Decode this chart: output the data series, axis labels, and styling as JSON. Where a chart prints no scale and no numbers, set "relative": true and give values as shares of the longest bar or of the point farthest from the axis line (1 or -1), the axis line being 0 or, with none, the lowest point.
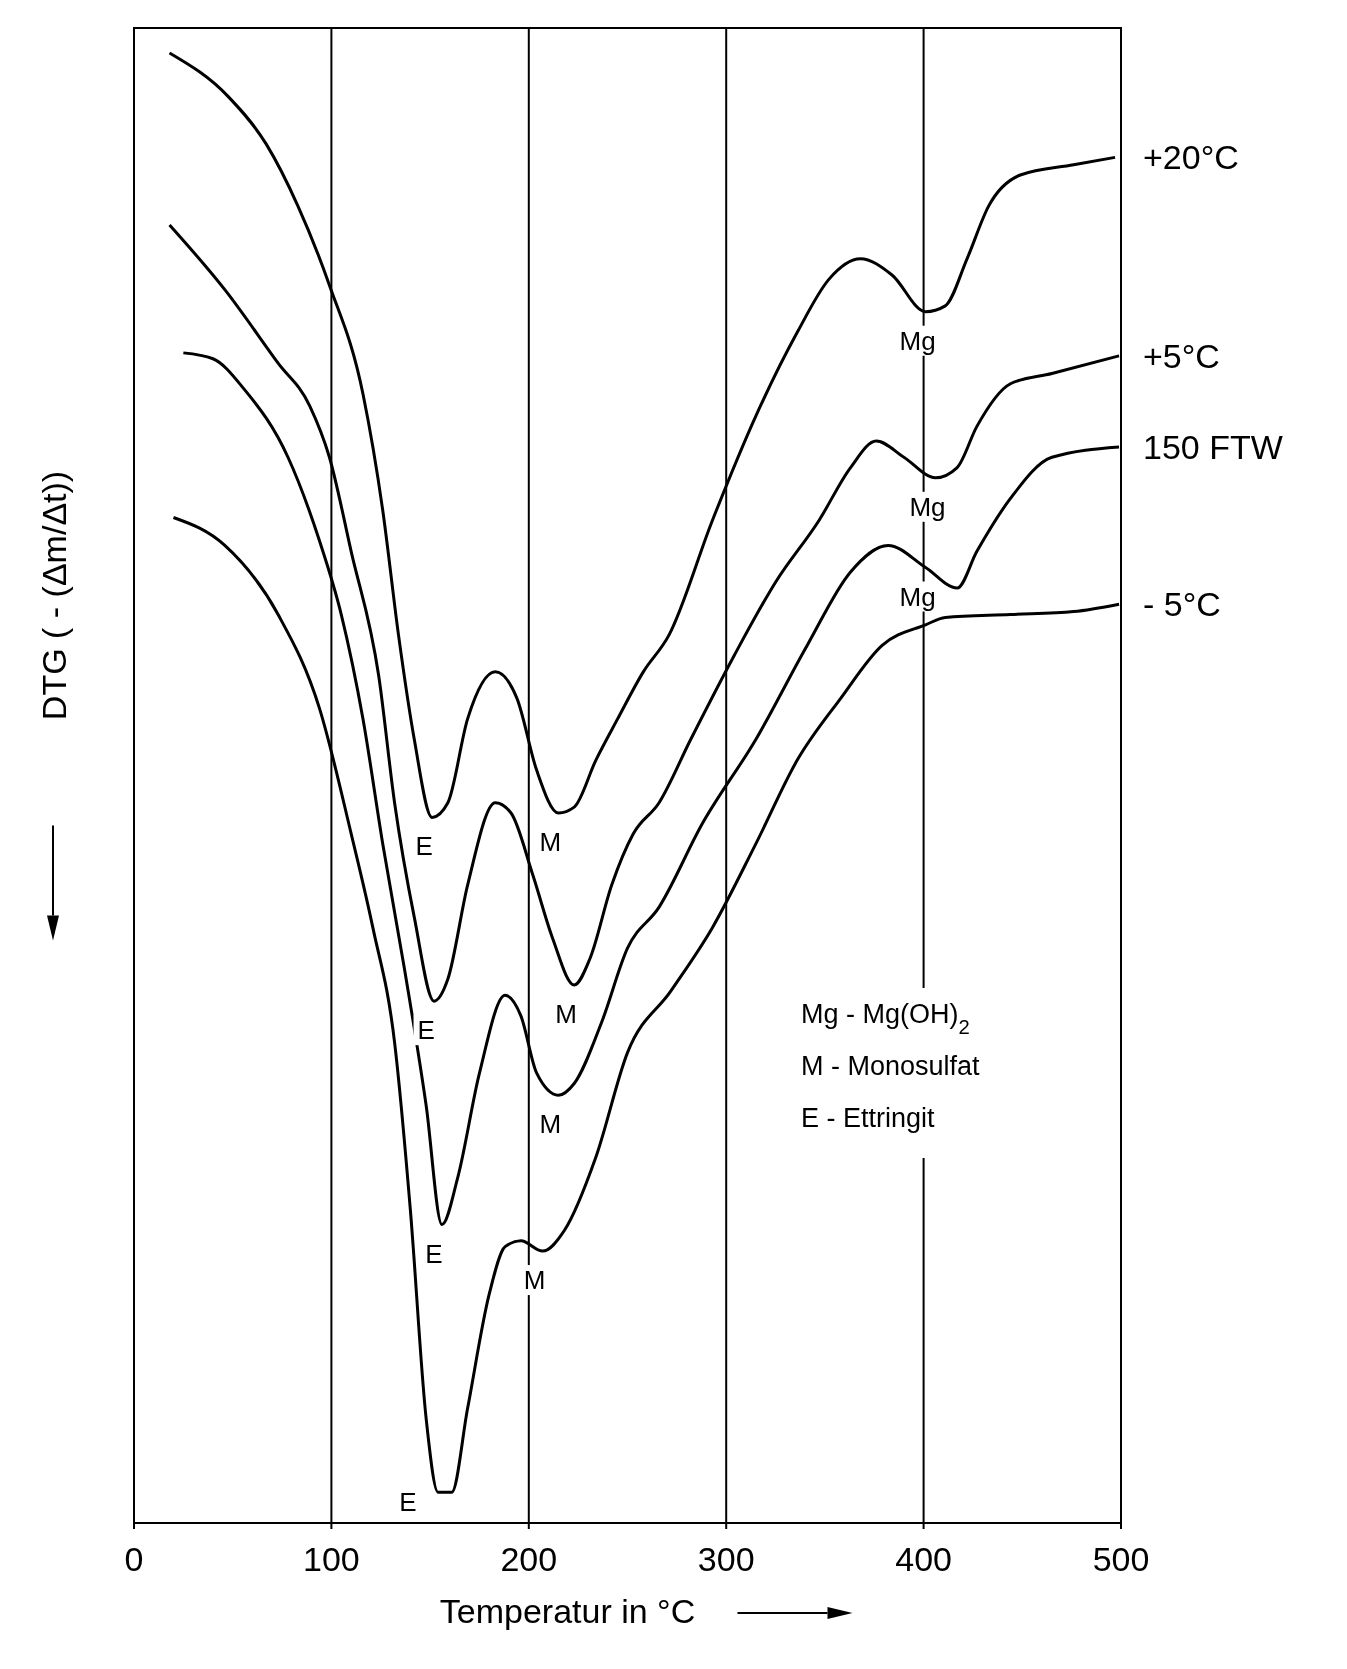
{
  "chart_data": {
    "type": "line",
    "relative": true,
    "xlabel": "Temperatur in °C",
    "ylabel": "DTG ( - (Δm/Δt))",
    "xlim": [
      0,
      500
    ],
    "xticks": [
      0,
      100,
      200,
      300,
      400,
      500
    ],
    "grid": "x",
    "legend": false,
    "marker": "none",
    "line_style": "solid",
    "series": [
      {
        "name": "+20°C",
        "color": "#000000",
        "x": [
          18,
          48,
          67,
          83,
          99,
          116,
          126,
          134,
          142,
          151,
          159,
          169,
          183,
          194,
          204,
          215,
          223,
          234,
          245,
          258,
          271,
          293,
          315,
          336,
          352,
          368,
          384,
          401,
          411,
          422,
          433,
          449,
          476,
          497
        ],
        "values": [
          1.0,
          0.97,
          0.938,
          0.896,
          0.842,
          0.768,
          0.689,
          0.604,
          0.533,
          0.48,
          0.49,
          0.547,
          0.579,
          0.561,
          0.512,
          0.483,
          0.487,
          0.519,
          0.547,
          0.579,
          0.604,
          0.682,
          0.753,
          0.81,
          0.846,
          0.86,
          0.849,
          0.824,
          0.828,
          0.86,
          0.896,
          0.917,
          0.924,
          0.929
        ]
      },
      {
        "name": "+5°C",
        "color": "#000000",
        "x": [
          18,
          46,
          73,
          89,
          99,
          110,
          124,
          132,
          142,
          152,
          159,
          169,
          183,
          191,
          202,
          212,
          223,
          231,
          242,
          253,
          266,
          282,
          304,
          325,
          347,
          363,
          376,
          390,
          406,
          417,
          427,
          444,
          465,
          499
        ],
        "values": [
          0.883,
          0.839,
          0.789,
          0.76,
          0.725,
          0.661,
          0.576,
          0.49,
          0.412,
          0.355,
          0.37,
          0.434,
          0.49,
          0.483,
          0.441,
          0.398,
          0.366,
          0.384,
          0.434,
          0.469,
          0.49,
          0.533,
          0.59,
          0.64,
          0.682,
          0.718,
          0.736,
          0.725,
          0.711,
          0.718,
          0.746,
          0.775,
          0.782,
          0.794
        ]
      },
      {
        "name": "150 FTW",
        "color": "#000000",
        "x": [
          25,
          40,
          56,
          78,
          94,
          105,
          116,
          126,
          137,
          148,
          156,
          164,
          175,
          188,
          196,
          204,
          215,
          223,
          237,
          250,
          266,
          288,
          315,
          341,
          363,
          382,
          401,
          417,
          427,
          444,
          465,
          499
        ],
        "values": [
          0.796,
          0.792,
          0.771,
          0.725,
          0.668,
          0.618,
          0.547,
          0.462,
          0.377,
          0.284,
          0.203,
          0.235,
          0.306,
          0.359,
          0.345,
          0.306,
          0.291,
          0.299,
          0.341,
          0.391,
          0.419,
          0.476,
          0.533,
          0.597,
          0.647,
          0.665,
          0.65,
          0.636,
          0.661,
          0.697,
          0.725,
          0.732
        ]
      },
      {
        "name": "- 5°C",
        "color": "#000000",
        "x": [
          20,
          46,
          73,
          94,
          110,
          121,
          132,
          140,
          148,
          154,
          161,
          169,
          180,
          188,
          196,
          207,
          218,
          234,
          250,
          272,
          293,
          315,
          336,
          358,
          379,
          401,
          411,
          444,
          476,
          499
        ],
        "values": [
          0.684,
          0.665,
          0.618,
          0.554,
          0.469,
          0.405,
          0.327,
          0.213,
          0.071,
          0.021,
          0.021,
          0.078,
          0.156,
          0.188,
          0.192,
          0.185,
          0.199,
          0.249,
          0.32,
          0.362,
          0.405,
          0.462,
          0.519,
          0.561,
          0.597,
          0.611,
          0.616,
          0.618,
          0.62,
          0.625
        ]
      }
    ],
    "annotations": [
      {
        "text": "E",
        "x": 151,
        "y": 0.48
      },
      {
        "text": "M",
        "x": 215,
        "y": 0.483
      },
      {
        "text": "Mg",
        "x": 401,
        "y": 0.824
      },
      {
        "text": "E",
        "x": 152,
        "y": 0.355
      },
      {
        "text": "M",
        "x": 223,
        "y": 0.366
      },
      {
        "text": "Mg",
        "x": 406,
        "y": 0.711
      },
      {
        "text": "E",
        "x": 156,
        "y": 0.203
      },
      {
        "text": "M",
        "x": 215,
        "y": 0.291
      },
      {
        "text": "Mg",
        "x": 401,
        "y": 0.65
      },
      {
        "text": "E",
        "x": 154,
        "y": 0.021
      },
      {
        "text": "M",
        "x": 207,
        "y": 0.185
      },
      "Mg - Mg(OH)$_{2}$",
      "M - Monosulfat",
      "E - Ettringit"
    ]
  }
}
